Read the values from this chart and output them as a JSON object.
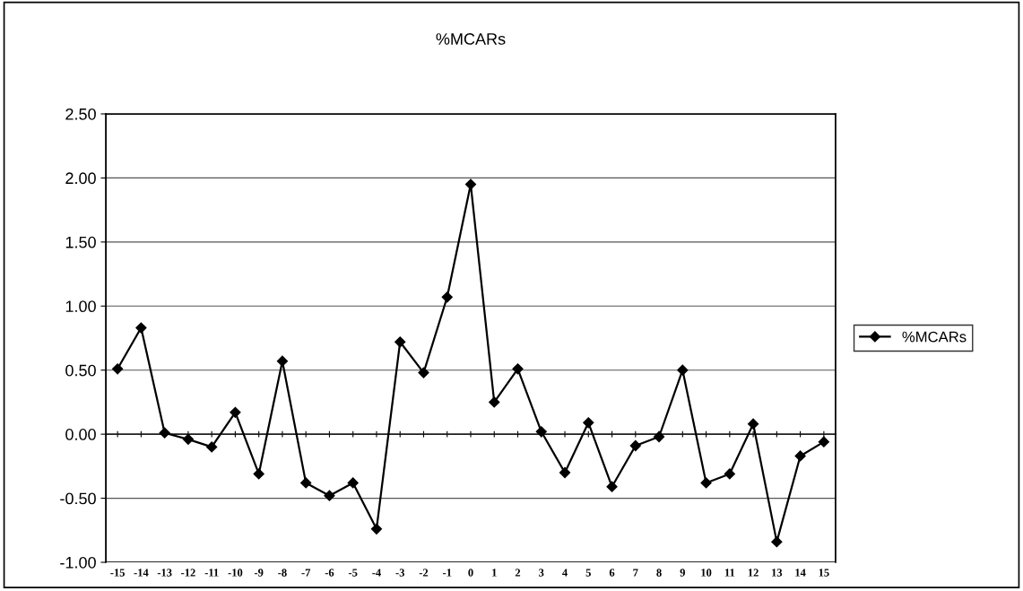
{
  "chart_data": {
    "type": "line",
    "title": "%MCARs",
    "categories": [
      "-15",
      "-14",
      "-13",
      "-12",
      "-11",
      "-10",
      "-9",
      "-8",
      "-7",
      "-6",
      "-5",
      "-4",
      "-3",
      "-2",
      "-1",
      "0",
      "1",
      "2",
      "3",
      "4",
      "5",
      "6",
      "7",
      "8",
      "9",
      "10",
      "11",
      "12",
      "13",
      "14",
      "15"
    ],
    "series": [
      {
        "name": "%MCARs",
        "color": "#000000",
        "values": [
          0.51,
          0.83,
          0.01,
          -0.04,
          -0.1,
          0.17,
          -0.31,
          0.57,
          -0.38,
          -0.48,
          -0.38,
          -0.74,
          0.72,
          0.48,
          1.07,
          1.95,
          0.25,
          0.51,
          0.02,
          -0.3,
          0.09,
          -0.41,
          -0.09,
          -0.02,
          0.5,
          -0.38,
          -0.31,
          0.08,
          -0.84,
          -0.17,
          -0.06
        ]
      }
    ],
    "ylim": [
      -1.0,
      2.5
    ],
    "yticks": [
      {
        "value": -1.0,
        "label": "-1.00"
      },
      {
        "value": -0.5,
        "label": "-0.50"
      },
      {
        "value": 0.0,
        "label": "0.00"
      },
      {
        "value": 0.5,
        "label": "0.50"
      },
      {
        "value": 1.0,
        "label": "1.00"
      },
      {
        "value": 1.5,
        "label": "1.50"
      },
      {
        "value": 2.0,
        "label": "2.00"
      },
      {
        "value": 2.5,
        "label": "2.50"
      }
    ],
    "grid": "y",
    "legend": "right",
    "marker": "diamond",
    "line_style": "solid"
  }
}
